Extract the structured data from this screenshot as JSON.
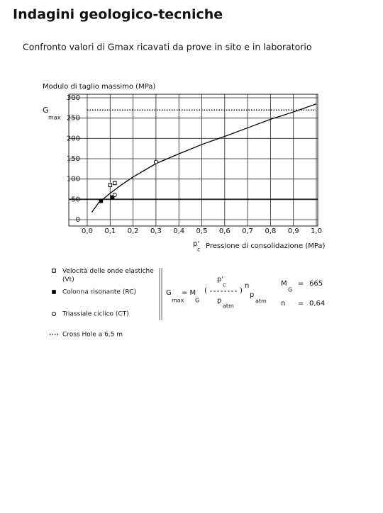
{
  "title": "Indagini geologico-tecniche",
  "subtitle": "Confronto valori di Gmax ricavati da prove in sito e in laboratorio",
  "chart_data": {
    "type": "scatter",
    "ylabel": "Modulo di taglio massimo (MPa)",
    "ysymbol": "G",
    "ysymbol_sub": "max",
    "xsymbol": "p'",
    "xsymbol_sub": "c",
    "xlabel": "Pressione di consolidazione (MPa)",
    "xlim": [
      0,
      1
    ],
    "ylim": [
      0,
      300
    ],
    "xticks": [
      {
        "value": 0,
        "label": "0,0"
      },
      {
        "value": 0.1,
        "label": "0,1"
      },
      {
        "value": 0.2,
        "label": "0,2"
      },
      {
        "value": 0.3,
        "label": "0,3"
      },
      {
        "value": 0.4,
        "label": "0,4"
      },
      {
        "value": 0.5,
        "label": "0,5"
      },
      {
        "value": 0.6,
        "label": "0,6"
      },
      {
        "value": 0.7,
        "label": "0,7"
      },
      {
        "value": 0.8,
        "label": "0,8"
      },
      {
        "value": 0.9,
        "label": "0,9"
      },
      {
        "value": 1,
        "label": "1,0"
      }
    ],
    "yticks": [
      0,
      50,
      100,
      150,
      200,
      250,
      300
    ],
    "grid": true,
    "series": [
      {
        "name": "Velocità delle onde elastiche (Vt)",
        "marker": "open-square",
        "color": "#000000",
        "x": [
          0.1,
          0.12
        ],
        "values": [
          85,
          90
        ]
      },
      {
        "name": "Colonna risonante (RC)",
        "marker": "filled-square",
        "color": "#000000",
        "x": [
          0.06,
          0.11
        ],
        "values": [
          46,
          55
        ]
      },
      {
        "name": "Triassiale ciclico (CT)",
        "marker": "open-circle",
        "color": "#000000",
        "x": [
          0.12,
          0.3
        ],
        "values": [
          61,
          142
        ]
      },
      {
        "name": "Cross Hole a 6,5 m",
        "marker": "dotted",
        "color": "#000000",
        "x": [
          0,
          1
        ],
        "values": [
          270,
          270
        ]
      }
    ],
    "curve": {
      "color": "#000000",
      "x": [
        0.02,
        0.05,
        0.1,
        0.15,
        0.2,
        0.3,
        0.4,
        0.5,
        0.6,
        0.7,
        0.8,
        0.9,
        1.0
      ],
      "values": [
        18,
        42,
        65,
        86,
        105,
        138,
        162,
        185,
        205,
        226,
        247,
        265,
        285
      ]
    }
  },
  "formula": {
    "lhs": "G",
    "lhs_sub": "max",
    "eq": "= M",
    "m_sub": "G",
    "open": "(",
    "num": "p'",
    "num_sub": "c",
    "den": "p",
    "den_sub": "atm",
    "close": ")",
    "exp": "n",
    "tail": "p",
    "tail_sub": "atm"
  },
  "params": {
    "mg": "M",
    "mg_sub": "G",
    "eq": "=",
    "mg_value": "665",
    "n": "n",
    "n_value": "0,64"
  }
}
